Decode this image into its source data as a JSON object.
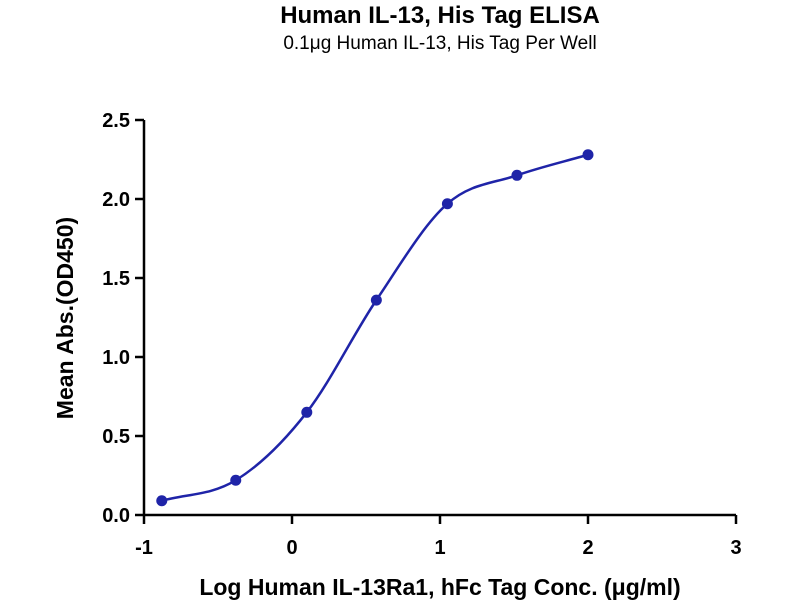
{
  "chart_data": {
    "type": "scatter",
    "title": "Human IL-13, His Tag ELISA",
    "subtitle": "0.1μg Human IL-13, His Tag Per Well",
    "xlabel": "Log Human IL-13Ra1, hFc Tag Conc. (μg/ml)",
    "ylabel": "Mean Abs.(OD450)",
    "xlim": [
      -1,
      3
    ],
    "ylim": [
      0,
      2.5
    ],
    "xticks": [
      "-1",
      "0",
      "1",
      "2",
      "3"
    ],
    "yticks": [
      "0.0",
      "0.5",
      "1.0",
      "1.5",
      "2.0",
      "2.5"
    ],
    "grid": false,
    "series": [
      {
        "points": [
          {
            "x": -0.88,
            "y": 0.09
          },
          {
            "x": -0.38,
            "y": 0.22
          },
          {
            "x": 0.1,
            "y": 0.65
          },
          {
            "x": 0.57,
            "y": 1.36
          },
          {
            "x": 1.05,
            "y": 1.97
          },
          {
            "x": 1.52,
            "y": 2.15
          },
          {
            "x": 2.0,
            "y": 2.28
          }
        ],
        "fit": "sigmoidal",
        "color": "#1f24a8"
      }
    ]
  }
}
